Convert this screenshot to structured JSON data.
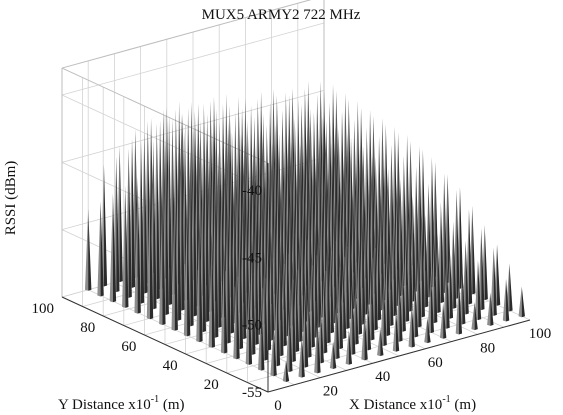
{
  "chart_data": {
    "type": "3d-stem",
    "title": "MUX5 ARMY2 722 MHz",
    "xlabel": {
      "prefix": "X Distance x10",
      "sup": "-1",
      "suffix": " (m)"
    },
    "ylabel": {
      "prefix": "Y Distance x10",
      "sup": "-1",
      "suffix": " (m)"
    },
    "zlabel": "RSSI (dBm)",
    "xlim": [
      0,
      100
    ],
    "ylim": [
      0,
      100
    ],
    "zlim": [
      -55,
      -38
    ],
    "xticks": [
      0,
      20,
      40,
      60,
      80,
      100
    ],
    "yticks": [
      20,
      40,
      60,
      80,
      100
    ],
    "zticks": [
      -55,
      -50,
      -45,
      -40
    ],
    "grid": true,
    "grid_x": [
      0,
      10,
      20,
      30,
      40,
      50,
      60,
      70,
      80,
      90,
      100
    ],
    "grid_y": [
      0,
      10,
      20,
      30,
      40,
      50,
      60,
      70,
      80,
      90,
      100
    ],
    "spike_color": "#2b2b2b",
    "spike_highlight": "#8c8c8c",
    "spike_grid_x": [
      10,
      16,
      22,
      28,
      34,
      40,
      46,
      52,
      58,
      64,
      70,
      76,
      82,
      88,
      94,
      100
    ],
    "spike_grid_y": [
      4,
      10,
      16,
      22,
      28,
      34,
      40,
      46,
      52,
      58,
      64,
      70,
      76,
      82,
      88,
      94,
      100
    ],
    "spike_values": [
      [
        -53.5,
        -52.0,
        -51.0,
        -53.0,
        -52.5,
        -51.5,
        -53.0,
        -52.0,
        -51.8,
        -53.2,
        -52.4,
        -51.2,
        -53.0,
        -52.6,
        -51.9,
        -52.8
      ],
      [
        -51.5,
        -50.0,
        -49.0,
        -51.0,
        -50.5,
        -49.5,
        -51.5,
        -50.0,
        -49.8,
        -51.2,
        -50.4,
        -49.6,
        -51.0,
        -50.6,
        -50.0,
        -51.5
      ],
      [
        -50.0,
        -48.5,
        -47.5,
        -50.0,
        -49.0,
        -48.0,
        -50.5,
        -49.0,
        -48.5,
        -50.0,
        -49.2,
        -48.4,
        -50.0,
        -49.6,
        -49.0,
        -50.5
      ],
      [
        -49.0,
        -47.0,
        -46.5,
        -49.0,
        -48.0,
        -47.0,
        -49.5,
        -48.0,
        -47.5,
        -49.0,
        -48.2,
        -47.4,
        -49.2,
        -48.6,
        -48.0,
        -49.5
      ],
      [
        -48.0,
        -46.0,
        -45.5,
        -48.0,
        -47.0,
        -46.5,
        -48.5,
        -47.0,
        -46.5,
        -48.0,
        -47.2,
        -46.8,
        -48.2,
        -47.6,
        -47.0,
        -48.5
      ],
      [
        -47.0,
        -45.0,
        -44.5,
        -47.0,
        -46.0,
        -45.5,
        -47.5,
        -46.0,
        -45.8,
        -47.0,
        -46.4,
        -46.0,
        -47.2,
        -46.6,
        -46.2,
        -47.5
      ],
      [
        -46.5,
        -44.0,
        -43.5,
        -46.0,
        -45.0,
        -44.5,
        -46.5,
        -45.5,
        -45.0,
        -46.5,
        -45.6,
        -45.2,
        -46.4,
        -45.8,
        -45.4,
        -47.0
      ],
      [
        -45.5,
        -43.0,
        -42.5,
        -45.0,
        -44.5,
        -44.0,
        -46.0,
        -45.0,
        -44.5,
        -46.0,
        -45.2,
        -44.8,
        -46.0,
        -45.4,
        -45.0,
        -46.5
      ],
      [
        -45.0,
        -42.5,
        -42.0,
        -44.5,
        -44.0,
        -43.5,
        -45.5,
        -44.5,
        -44.2,
        -45.5,
        -44.8,
        -44.4,
        -45.6,
        -45.0,
        -44.6,
        -46.0
      ],
      [
        -44.5,
        -42.0,
        -41.5,
        -44.0,
        -43.5,
        -43.0,
        -45.0,
        -44.0,
        -43.8,
        -45.2,
        -44.4,
        -44.0,
        -45.2,
        -44.8,
        -44.4,
        -45.8
      ],
      [
        -45.0,
        -42.5,
        -41.0,
        -43.5,
        -43.0,
        -42.5,
        -44.5,
        -43.8,
        -43.5,
        -45.0,
        -44.2,
        -43.8,
        -45.0,
        -44.6,
        -44.2,
        -45.6
      ],
      [
        -44.5,
        -42.0,
        -40.5,
        -43.0,
        -42.5,
        -42.0,
        -44.0,
        -43.4,
        -43.2,
        -44.8,
        -44.0,
        -43.6,
        -44.8,
        -44.4,
        -44.0,
        -45.4
      ],
      [
        -45.0,
        -42.5,
        -41.0,
        -42.5,
        -42.0,
        -41.5,
        -43.5,
        -43.0,
        -42.8,
        -44.6,
        -43.8,
        -43.4,
        -44.6,
        -44.2,
        -43.8,
        -45.2
      ],
      [
        -46.0,
        -43.0,
        -42.0,
        -42.0,
        -41.5,
        -41.5,
        -43.2,
        -42.8,
        -42.6,
        -44.4,
        -43.6,
        -43.2,
        -44.4,
        -44.0,
        -43.6,
        -45.0
      ],
      [
        -47.0,
        -44.0,
        -43.0,
        -42.5,
        -42.0,
        -41.8,
        -43.0,
        -42.6,
        -42.4,
        -44.2,
        -43.4,
        -43.0,
        -44.2,
        -43.8,
        -43.4,
        -44.8
      ],
      [
        -48.0,
        -45.0,
        -44.0,
        -43.0,
        -42.5,
        -42.2,
        -43.2,
        -42.8,
        -42.6,
        -44.0,
        -43.6,
        -43.2,
        -44.0,
        -43.8,
        -43.6,
        -44.6
      ],
      [
        -49.0,
        -46.0,
        -45.0,
        -44.0,
        -43.5,
        -43.0,
        -43.8,
        -43.4,
        -43.2,
        -44.2,
        -44.0,
        -43.8,
        -44.4,
        -44.2,
        -44.0,
        -45.0
      ]
    ]
  }
}
